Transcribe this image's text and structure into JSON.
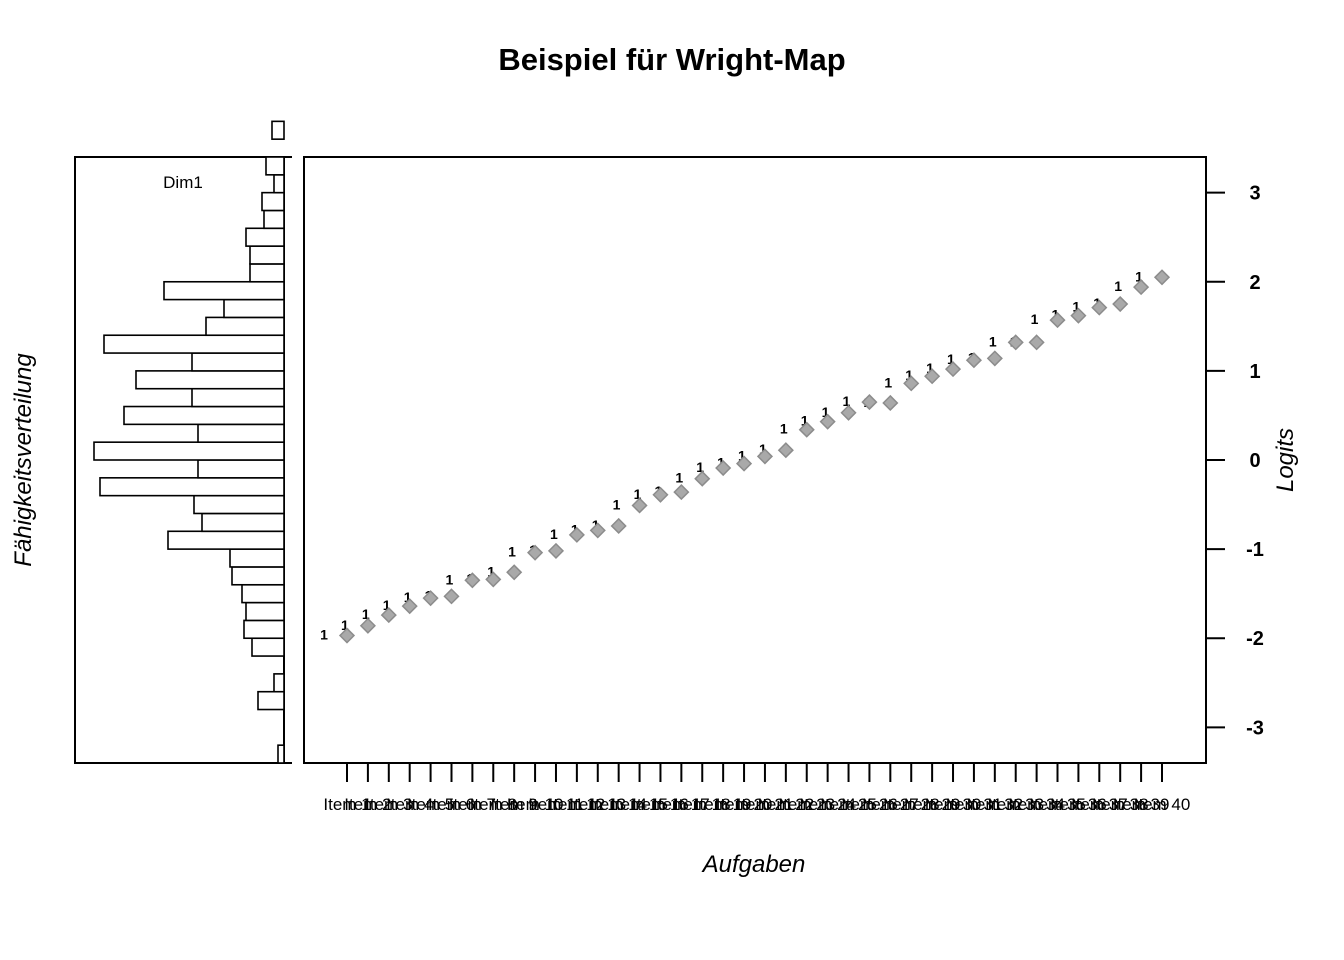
{
  "chart_data": {
    "type": "scatter",
    "title": "Beispiel für Wright-Map",
    "xlabel": "Aufgaben",
    "ylabel": "Logits",
    "hist_label": "Fähigkeitsverteilung",
    "hist_dim_label": "Dim1",
    "ylim": [
      -3.4,
      3.4
    ],
    "y_ticks": [
      -3,
      -2,
      -1,
      0,
      1,
      2,
      3
    ],
    "y_tick_labels": [
      "-3",
      "-2",
      "-1",
      "0",
      "1",
      "2",
      "3"
    ],
    "grid": false,
    "x_tick_labels": [
      "Item 1",
      "Item 2",
      "Item 3",
      "Item 4",
      "Item 5",
      "Item 6",
      "Item 7",
      "Item 8",
      "Item 9",
      "Item 10",
      "Item 11",
      "Item 12",
      "Item 13",
      "Item 14",
      "Item 15",
      "Item 16",
      "Item 17",
      "Item 18",
      "Item 19",
      "Item 20",
      "Item 21",
      "Item 22",
      "Item 23",
      "Item 24",
      "Item 25",
      "Item 26",
      "Item 27",
      "Item 28",
      "Item 29",
      "Item 30",
      "Item 31",
      "Item 32",
      "Item 33",
      "Item 34",
      "Item 35",
      "Item 36",
      "Item 37",
      "Item 38",
      "Item 39",
      "Item 40"
    ],
    "threshold_label": "1",
    "series": [
      {
        "values": [
          -1.97,
          -1.86,
          -1.74,
          -1.64,
          -1.55,
          -1.53,
          -1.35,
          -1.34,
          -1.26,
          -1.04,
          -1.02,
          -0.84,
          -0.79,
          -0.74,
          -0.51,
          -0.39,
          -0.36,
          -0.21,
          -0.09,
          -0.04,
          0.04,
          0.11,
          0.34,
          0.43,
          0.53,
          0.65,
          0.64,
          0.86,
          0.94,
          1.02,
          1.12,
          1.14,
          1.32,
          1.32,
          1.57,
          1.62,
          1.71,
          1.75,
          1.94,
          2.05
        ]
      }
    ],
    "histogram": {
      "orientation": "horizontal",
      "bin_width": 0.2,
      "bins_from": -3.4,
      "relative_counts": [
        0.03,
        0,
        0,
        0.13,
        0.05,
        0,
        0.16,
        0.2,
        0.19,
        0.21,
        0.26,
        0.27,
        0.58,
        0.41,
        0.45,
        0.92,
        0.43,
        0.95,
        0.43,
        0.8,
        0.46,
        0.74,
        0.46,
        0.9,
        0.39,
        0.3,
        0.6,
        0.17,
        0.17,
        0.19,
        0.1,
        0.11,
        0.05,
        0.09,
        0,
        0.06
      ]
    }
  }
}
